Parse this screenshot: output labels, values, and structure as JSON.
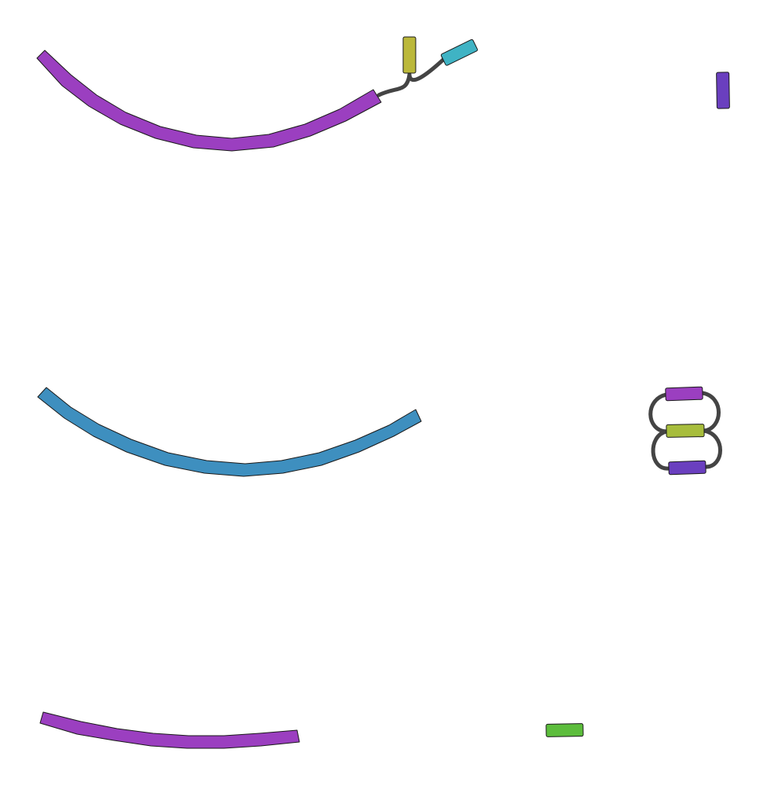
{
  "graph": {
    "segments": [
      {
        "id": "s1",
        "name": "segment-purple-arc-top",
        "color": "#9b3fc0"
      },
      {
        "id": "s2",
        "name": "segment-olive-top",
        "color": "#bbb83a"
      },
      {
        "id": "s3",
        "name": "segment-cyan-top",
        "color": "#3fb3c4"
      },
      {
        "id": "s4",
        "name": "segment-indigo-top-right",
        "color": "#6a3fbf"
      },
      {
        "id": "s5",
        "name": "segment-blue-arc-middle",
        "color": "#3e8fbf"
      },
      {
        "id": "s6",
        "name": "segment-magenta-loop-top",
        "color": "#9b3fc0"
      },
      {
        "id": "s7",
        "name": "segment-lime-loop-middle",
        "color": "#a7bd3c"
      },
      {
        "id": "s8",
        "name": "segment-indigo-loop-bottom",
        "color": "#6a3fbf"
      },
      {
        "id": "s9",
        "name": "segment-purple-arc-bottom",
        "color": "#9b3fc0"
      },
      {
        "id": "s10",
        "name": "segment-green-bottom",
        "color": "#5cbd3c"
      }
    ],
    "edge_color": "#444444",
    "outline_color": "#1a1a1a"
  }
}
